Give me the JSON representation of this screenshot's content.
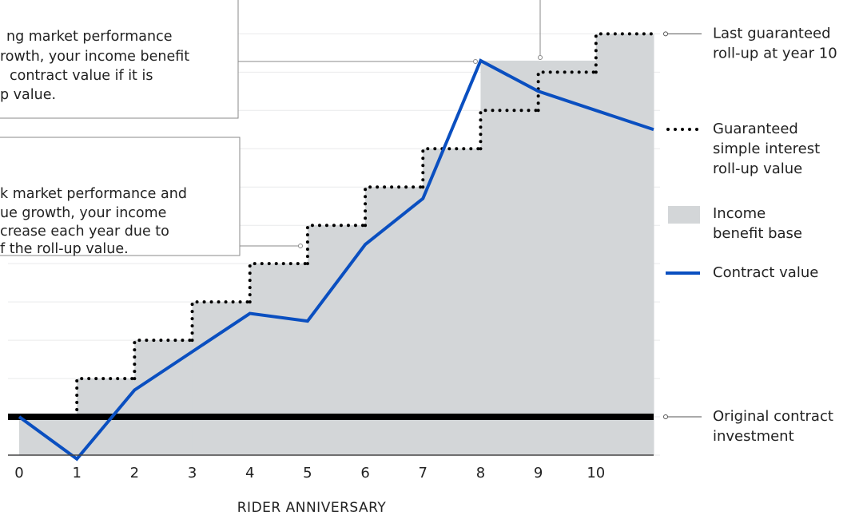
{
  "chart_data": {
    "type": "step-area-line",
    "x_label": "RIDER ANNIVERSARY",
    "xlim": [
      0,
      11
    ],
    "xticks": [
      0,
      1,
      2,
      3,
      4,
      5,
      6,
      7,
      8,
      9,
      10
    ],
    "ylim": [
      90,
      208
    ],
    "yticks": [
      90,
      100,
      110,
      120,
      130,
      140,
      150,
      160,
      170,
      180,
      190,
      200
    ],
    "grid": true,
    "series": [
      {
        "name": [
          "Income",
          "benefit base"
        ],
        "kind": "area-step",
        "color": "#d3d6d8",
        "x": [
          0,
          1,
          2,
          3,
          4,
          5,
          6,
          7,
          8,
          9,
          10
        ],
        "values": [
          100,
          110,
          120,
          130,
          140,
          150,
          160,
          170,
          193,
          193,
          200
        ]
      },
      {
        "name": [
          "Guaranteed",
          "simple interest",
          "roll-up value"
        ],
        "kind": "step",
        "color": "#000000",
        "x": [
          0,
          1,
          2,
          3,
          4,
          5,
          6,
          7,
          8,
          9,
          10
        ],
        "values": [
          100,
          110,
          120,
          130,
          140,
          150,
          160,
          170,
          180,
          190,
          200
        ]
      },
      {
        "name": [
          "Contract value"
        ],
        "kind": "line",
        "color": "#0a4fc0",
        "x": [
          0,
          1,
          2,
          3,
          4,
          5,
          6,
          7,
          8,
          9,
          10,
          11
        ],
        "values": [
          100,
          89,
          107,
          117,
          127,
          125,
          145,
          157,
          193,
          185,
          180,
          175
        ]
      }
    ],
    "reference": {
      "value": 100,
      "label": [
        "Original contract",
        "investment"
      ]
    },
    "callout": {
      "label": [
        "Last guaranteed",
        "roll-up at year 10"
      ]
    },
    "annotations": [
      {
        "lines": [
          "ng market performance",
          "rowth, your income benefit",
          "contract value if it is",
          "p value."
        ]
      },
      {
        "lines": [
          "k market performance and",
          "ue growth, your income",
          "crease each year due to",
          "f the roll-up value."
        ]
      }
    ]
  }
}
